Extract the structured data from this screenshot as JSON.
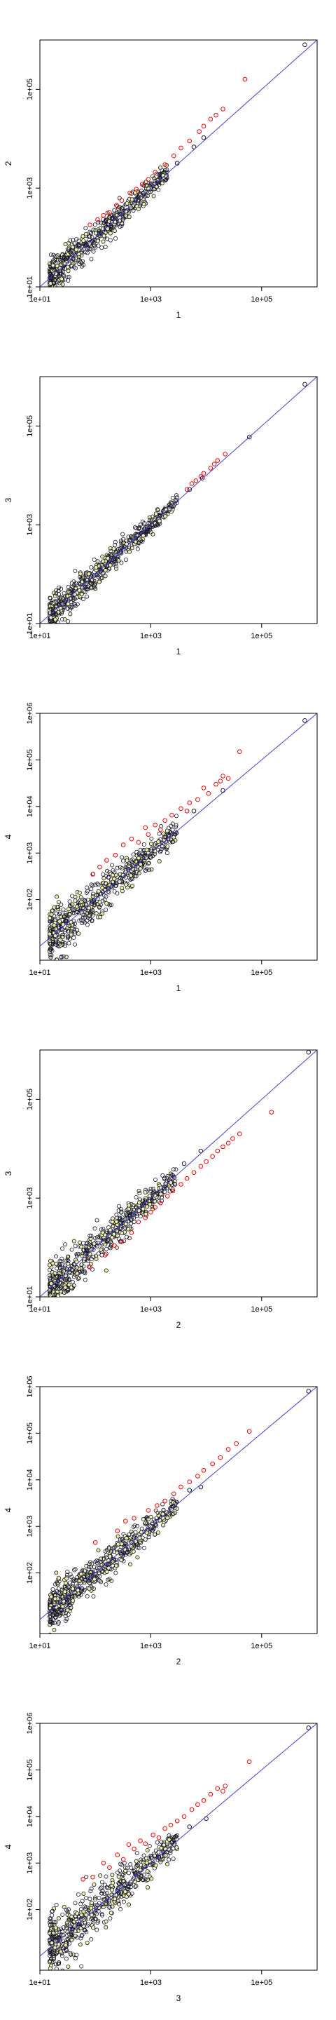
{
  "figure": {
    "background": "#ffffff",
    "point_colors": {
      "normal": "#1a1a2e",
      "outlier": "#ff0000",
      "fill_normal": "#f2efa8"
    },
    "line_color": "#3b3bd9"
  },
  "chart_data": [
    {
      "type": "scatter",
      "title": "",
      "xlabel": "1",
      "ylabel": "2",
      "x_scale": "log",
      "y_scale": "log",
      "xlim": [
        10,
        1000000
      ],
      "ylim": [
        10,
        1000000
      ],
      "x_ticks": [
        10,
        1000,
        100000
      ],
      "x_tick_labels": [
        "1e+01",
        "1e+03",
        "1e+05"
      ],
      "y_ticks": [
        10,
        1000,
        100000
      ],
      "y_tick_labels": [
        "1e+01",
        "1e+03",
        "1e+05"
      ],
      "grid": false,
      "reference_line": "y = x",
      "cloud": {
        "x_min": 15,
        "x_max": 2000,
        "spread": 0.08,
        "count": 600
      },
      "outliers": [
        [
          80,
          180
        ],
        [
          110,
          230
        ],
        [
          140,
          280
        ],
        [
          180,
          320
        ],
        [
          240,
          450
        ],
        [
          300,
          560
        ],
        [
          420,
          800
        ],
        [
          550,
          950
        ],
        [
          700,
          1200
        ],
        [
          900,
          1500
        ],
        [
          1200,
          2100
        ],
        [
          1800,
          3000
        ],
        [
          2600,
          4500
        ],
        [
          3500,
          6500
        ],
        [
          5000,
          9000
        ],
        [
          7500,
          14000
        ],
        [
          9000,
          18000
        ],
        [
          12000,
          25000
        ],
        [
          15000,
          30000
        ],
        [
          20000,
          40000
        ],
        [
          50000,
          160000
        ]
      ],
      "extra_points": [
        [
          3000,
          3200
        ],
        [
          6000,
          6800
        ],
        [
          9000,
          10500
        ],
        [
          600000,
          800000
        ]
      ]
    },
    {
      "type": "scatter",
      "title": "",
      "xlabel": "1",
      "ylabel": "3",
      "x_scale": "log",
      "y_scale": "log",
      "xlim": [
        10,
        1000000
      ],
      "ylim": [
        10,
        1000000
      ],
      "x_ticks": [
        10,
        1000,
        100000
      ],
      "x_tick_labels": [
        "1e+01",
        "1e+03",
        "1e+05"
      ],
      "y_ticks": [
        10,
        1000,
        100000
      ],
      "y_tick_labels": [
        "1e+01",
        "1e+03",
        "1e+05"
      ],
      "grid": false,
      "reference_line": "y = x",
      "cloud": {
        "x_min": 15,
        "x_max": 3000,
        "spread": 0.07,
        "count": 600
      },
      "outliers": [
        [
          4500,
          5200
        ],
        [
          5500,
          6800
        ],
        [
          6500,
          7800
        ],
        [
          8000,
          9500
        ],
        [
          9000,
          11000
        ],
        [
          12000,
          14000
        ],
        [
          14000,
          17000
        ],
        [
          16000,
          20000
        ],
        [
          22000,
          27000
        ]
      ],
      "extra_points": [
        [
          5000,
          5200
        ],
        [
          8500,
          8800
        ],
        [
          60000,
          60000
        ],
        [
          600000,
          700000
        ]
      ]
    },
    {
      "type": "scatter",
      "title": "",
      "xlabel": "1",
      "ylabel": "4",
      "x_scale": "log",
      "y_scale": "log",
      "xlim": [
        10,
        1000000
      ],
      "ylim": [
        5,
        1000000
      ],
      "x_ticks": [
        10,
        1000,
        100000
      ],
      "x_tick_labels": [
        "1e+01",
        "1e+03",
        "1e+05"
      ],
      "y_ticks": [
        100,
        1000,
        10000,
        100000,
        1000000
      ],
      "y_tick_labels": [
        "1e+02",
        "1e+03",
        "1e+04",
        "1e+05",
        "1e+06"
      ],
      "grid": false,
      "reference_line": "y = x",
      "cloud": {
        "x_min": 15,
        "x_max": 3000,
        "spread": 0.12,
        "count": 600
      },
      "outliers": [
        [
          90,
          350
        ],
        [
          120,
          500
        ],
        [
          160,
          700
        ],
        [
          230,
          900
        ],
        [
          320,
          1500
        ],
        [
          450,
          2000
        ],
        [
          600,
          1700
        ],
        [
          800,
          3500
        ],
        [
          900,
          2500
        ],
        [
          1200,
          4000
        ],
        [
          1500,
          3200
        ],
        [
          1800,
          5000
        ],
        [
          2400,
          6500
        ],
        [
          3500,
          9000
        ],
        [
          4500,
          8000
        ],
        [
          5000,
          12000
        ],
        [
          7000,
          14000
        ],
        [
          9000,
          25000
        ],
        [
          11000,
          19000
        ],
        [
          15000,
          30000
        ],
        [
          18000,
          35000
        ],
        [
          20000,
          45000
        ],
        [
          25000,
          40000
        ],
        [
          40000,
          150000
        ]
      ],
      "extra_points": [
        [
          6000,
          8000
        ],
        [
          20000,
          22000
        ],
        [
          600000,
          700000
        ]
      ]
    },
    {
      "type": "scatter",
      "title": "",
      "xlabel": "2",
      "ylabel": "3",
      "x_scale": "log",
      "y_scale": "log",
      "xlim": [
        10,
        1000000
      ],
      "ylim": [
        10,
        1000000
      ],
      "x_ticks": [
        10,
        1000,
        100000
      ],
      "x_tick_labels": [
        "1e+01",
        "1e+03",
        "1e+05"
      ],
      "y_ticks": [
        10,
        1000,
        100000
      ],
      "y_tick_labels": [
        "1e+01",
        "1e+03",
        "1e+05"
      ],
      "grid": false,
      "reference_line": "y = x",
      "cloud": {
        "x_min": 15,
        "x_max": 3000,
        "spread": 0.1,
        "count": 600
      },
      "outliers": [
        [
          80,
          40
        ],
        [
          150,
          70
        ],
        [
          220,
          110
        ],
        [
          300,
          130
        ],
        [
          450,
          200
        ],
        [
          600,
          330
        ],
        [
          800,
          400
        ],
        [
          1000,
          520
        ],
        [
          1200,
          650
        ],
        [
          1500,
          800
        ],
        [
          2000,
          1100
        ],
        [
          2500,
          1400
        ],
        [
          3500,
          1900
        ],
        [
          4500,
          2500
        ],
        [
          6000,
          3300
        ],
        [
          8000,
          4400
        ],
        [
          10000,
          5500
        ],
        [
          13000,
          7000
        ],
        [
          16000,
          9000
        ],
        [
          20000,
          11000
        ],
        [
          25000,
          13000
        ],
        [
          30000,
          16000
        ],
        [
          40000,
          20000
        ],
        [
          150000,
          55000
        ]
      ],
      "extra_points": [
        [
          4000,
          5000
        ],
        [
          8000,
          9000
        ],
        [
          700000,
          900000
        ]
      ]
    },
    {
      "type": "scatter",
      "title": "",
      "xlabel": "2",
      "ylabel": "4",
      "x_scale": "log",
      "y_scale": "log",
      "xlim": [
        10,
        1000000
      ],
      "ylim": [
        5,
        1000000
      ],
      "x_ticks": [
        10,
        1000,
        100000
      ],
      "x_tick_labels": [
        "1e+01",
        "1e+03",
        "1e+05"
      ],
      "y_ticks": [
        100,
        1000,
        10000,
        100000,
        1000000
      ],
      "y_tick_labels": [
        "1e+02",
        "1e+03",
        "1e+04",
        "1e+05",
        "1e+06"
      ],
      "grid": false,
      "reference_line": "y = x",
      "cloud": {
        "x_min": 15,
        "x_max": 3000,
        "spread": 0.1,
        "count": 600
      },
      "outliers": [
        [
          100,
          450
        ],
        [
          250,
          800
        ],
        [
          350,
          1300
        ],
        [
          500,
          1500
        ],
        [
          900,
          2200
        ],
        [
          1300,
          2800
        ],
        [
          1800,
          3500
        ],
        [
          2600,
          5000
        ],
        [
          3500,
          7000
        ],
        [
          5000,
          9000
        ],
        [
          7000,
          12000
        ],
        [
          9000,
          16000
        ],
        [
          13000,
          22000
        ],
        [
          18000,
          30000
        ],
        [
          25000,
          45000
        ],
        [
          35000,
          60000
        ],
        [
          60000,
          110000
        ]
      ],
      "extra_points": [
        [
          2500,
          2700
        ],
        [
          5000,
          6000
        ],
        [
          8000,
          7000
        ],
        [
          700000,
          800000
        ]
      ]
    },
    {
      "type": "scatter",
      "title": "",
      "xlabel": "3",
      "ylabel": "4",
      "x_scale": "log",
      "y_scale": "log",
      "xlim": [
        10,
        1000000
      ],
      "ylim": [
        5,
        1000000
      ],
      "x_ticks": [
        10,
        1000,
        100000
      ],
      "x_tick_labels": [
        "1e+01",
        "1e+03",
        "1e+05"
      ],
      "y_ticks": [
        100,
        1000,
        10000,
        100000,
        1000000
      ],
      "y_tick_labels": [
        "1e+02",
        "1e+03",
        "1e+04",
        "1e+05",
        "1e+06"
      ],
      "grid": false,
      "reference_line": "y = x",
      "cloud": {
        "x_min": 15,
        "x_max": 3000,
        "spread": 0.13,
        "count": 600
      },
      "outliers": [
        [
          60,
          450
        ],
        [
          90,
          500
        ],
        [
          140,
          1000
        ],
        [
          180,
          800
        ],
        [
          250,
          1500
        ],
        [
          320,
          1200
        ],
        [
          400,
          2500
        ],
        [
          500,
          2000
        ],
        [
          650,
          3000
        ],
        [
          800,
          2600
        ],
        [
          1100,
          4000
        ],
        [
          1400,
          3500
        ],
        [
          1800,
          5500
        ],
        [
          2300,
          6500
        ],
        [
          3000,
          8000
        ],
        [
          4000,
          10000
        ],
        [
          5500,
          14000
        ],
        [
          7000,
          18000
        ],
        [
          9000,
          22000
        ],
        [
          12000,
          30000
        ],
        [
          16000,
          40000
        ],
        [
          20000,
          35000
        ],
        [
          22000,
          45000
        ],
        [
          60000,
          150000
        ]
      ],
      "extra_points": [
        [
          5000,
          6000
        ],
        [
          10000,
          9000
        ],
        [
          700000,
          800000
        ]
      ]
    }
  ]
}
